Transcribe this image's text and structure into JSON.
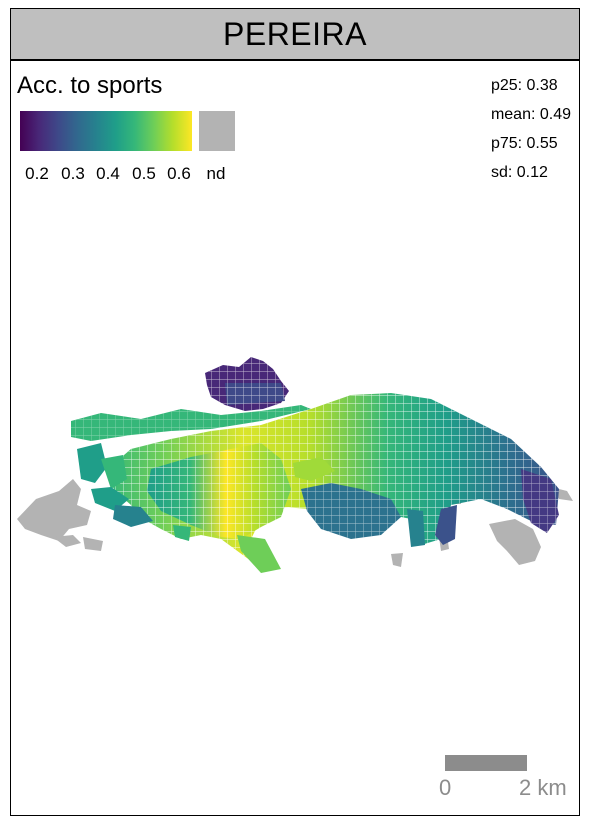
{
  "title": "PEREIRA",
  "legend": {
    "title": "Acc. to sports",
    "ticks": [
      "0.2",
      "0.3",
      "0.4",
      "0.5",
      "0.6"
    ],
    "nd_label": "nd",
    "palette": [
      "#440154",
      "#3e4989",
      "#26828e",
      "#35b779",
      "#b5de2b",
      "#fde725"
    ],
    "nd_color": "#b3b3b3"
  },
  "stats": {
    "p25": "p25: 0.38",
    "mean": "mean: 0.49",
    "p75": "p75: 0.55",
    "sd": "sd: 0.12"
  },
  "scale": {
    "start_label": "0",
    "end_label": "2 km"
  }
}
